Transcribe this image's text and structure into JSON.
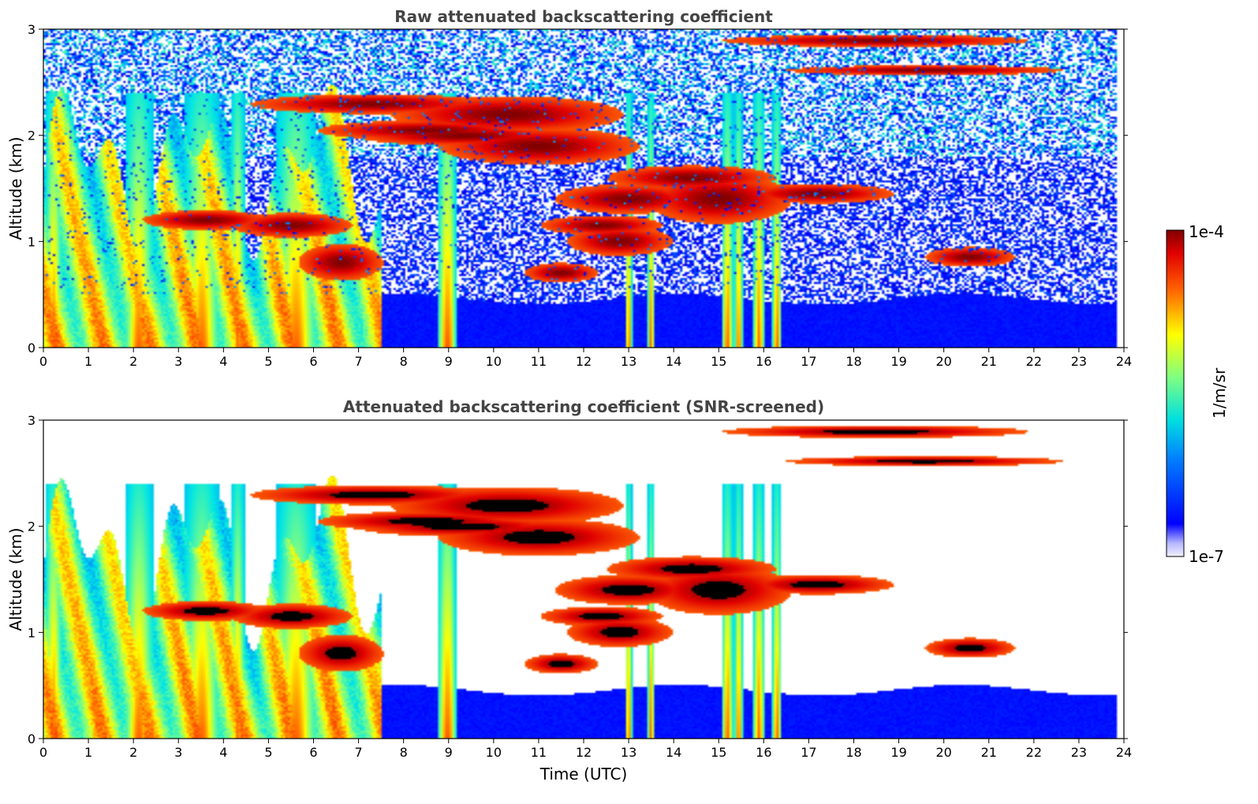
{
  "chart_data": [
    {
      "type": "heatmap",
      "title": "Raw attenuated backscattering coefficient",
      "xlabel": "",
      "ylabel": "Altitude (km)",
      "xlim": [
        0,
        24
      ],
      "ylim": [
        0,
        3
      ],
      "x_ticks": [
        "0",
        "1",
        "2",
        "3",
        "4",
        "5",
        "6",
        "7",
        "8",
        "9",
        "10",
        "11",
        "12",
        "13",
        "14",
        "15",
        "16",
        "17",
        "18",
        "19",
        "20",
        "21",
        "22",
        "23",
        "24"
      ],
      "y_ticks": [
        "0",
        "1",
        "2",
        "3"
      ],
      "screened": false
    },
    {
      "type": "heatmap",
      "title": "Attenuated backscattering coefficient (SNR-screened)",
      "xlabel": "Time (UTC)",
      "ylabel": "Altitude (km)",
      "xlim": [
        0,
        24
      ],
      "ylim": [
        0,
        3
      ],
      "x_ticks": [
        "0",
        "1",
        "2",
        "3",
        "4",
        "5",
        "6",
        "7",
        "8",
        "9",
        "10",
        "11",
        "12",
        "13",
        "14",
        "15",
        "16",
        "17",
        "18",
        "19",
        "20",
        "21",
        "22",
        "23",
        "24"
      ],
      "y_ticks": [
        "0",
        "1",
        "2",
        "3"
      ],
      "screened": true
    }
  ],
  "colorbar": {
    "label": "1/m/sr",
    "max_label": "1e-4",
    "min_label": "1e-7",
    "scale": "log",
    "colormap": "jet",
    "range": [
      1e-07,
      0.0001
    ]
  }
}
